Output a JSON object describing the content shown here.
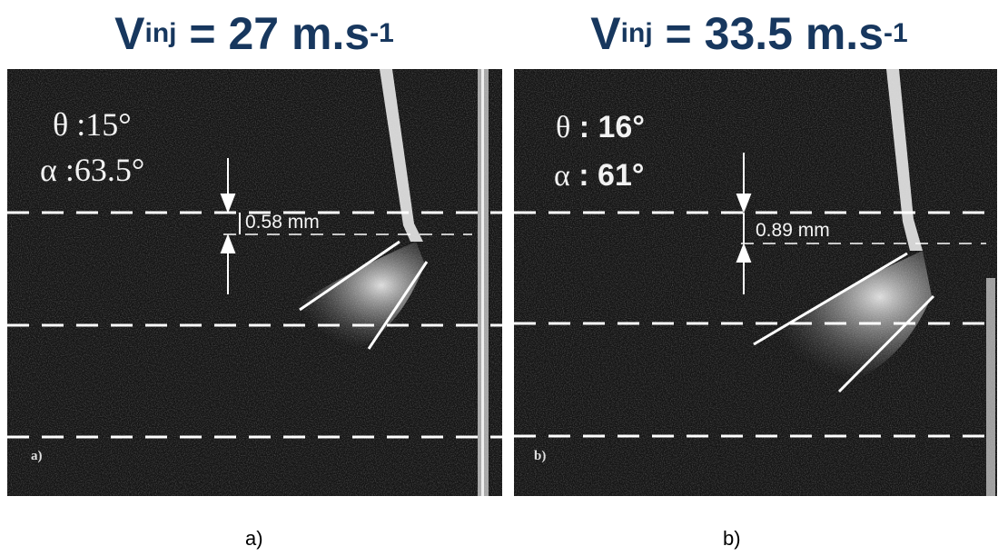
{
  "panels": [
    {
      "title_v": "V",
      "title_sub": "inj",
      "title_mid": " = 27 m.s",
      "title_sup": "-1",
      "theta_label": "θ :15°",
      "alpha_label": "α :63.5°",
      "measurement": "0.58 mm",
      "panel_label": "a)",
      "caption": "a)"
    },
    {
      "title_v": "V",
      "title_sub": "inj",
      "title_mid": " = 33.5 m.s",
      "title_sup": "-1",
      "theta_sym": "θ",
      "theta_value": " : 16°",
      "alpha_sym": "α",
      "alpha_value": " : 61°",
      "measurement": "0.89 mm",
      "panel_label": "b)",
      "caption": "b)"
    }
  ],
  "colors": {
    "title": "#17375e",
    "panel_bg": "#151515",
    "overlay": "#f2f2f2"
  }
}
